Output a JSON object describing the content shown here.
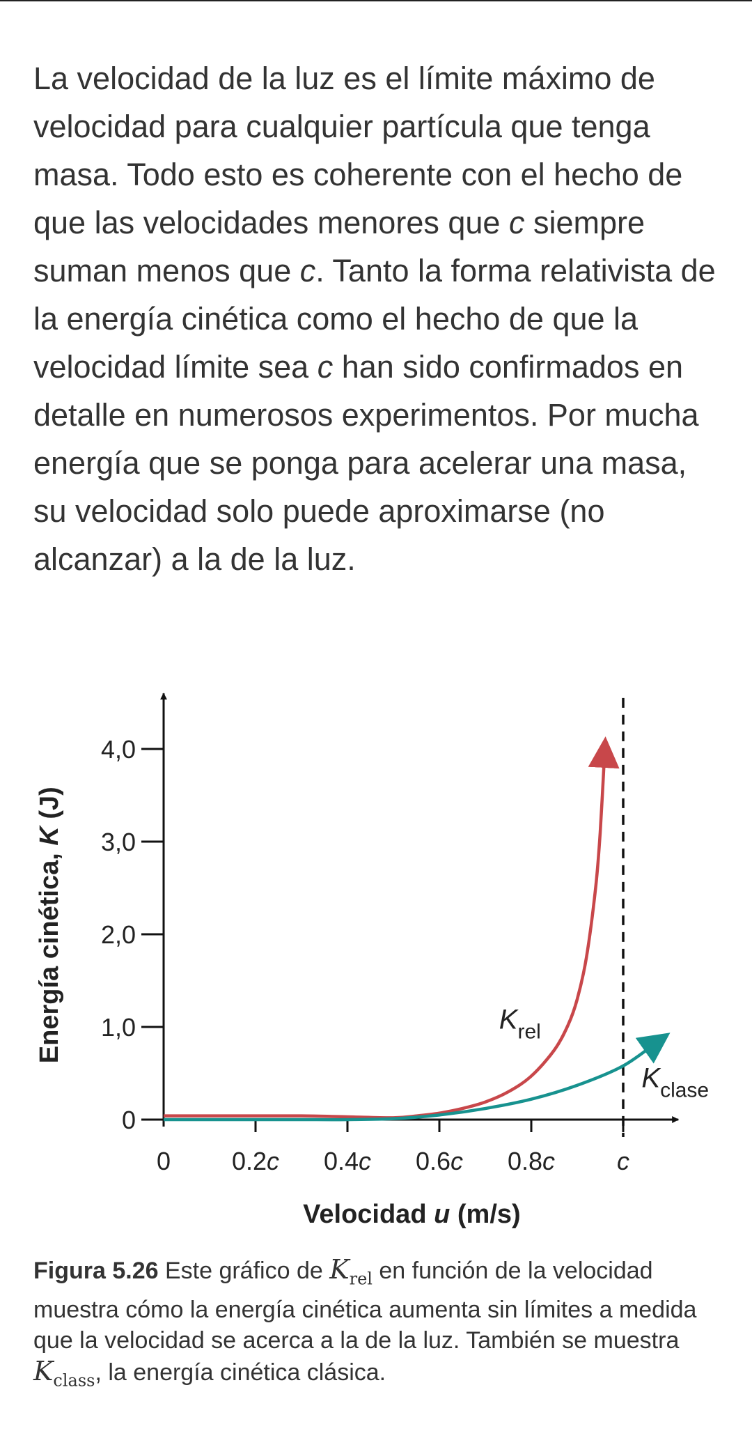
{
  "paragraph": {
    "part1": "La velocidad de la luz es el límite máximo de velocidad para cualquier partícula que tenga masa. Todo esto es coherente con el hecho de que las velocidades menores que ",
    "c1": "c",
    "part2": " siempre suman menos que ",
    "c2": "c",
    "part3": ". Tanto la forma relativista de la energía cinética como el hecho de que la velocidad límite sea ",
    "c3": "c",
    "part4": " han sido confirmados en detalle en numerosos experimentos. Por mucha energía que se ponga para acelerar una masa, su velocidad solo puede aproximarse (no alcanzar) a la de la luz."
  },
  "caption": {
    "figure_label": "Figura 5.26",
    "text1": " Este gráfico de ",
    "k_rel_symbol": "K",
    "k_rel_sub": "rel",
    "text2": " en función de la velocidad muestra cómo la energía cinética aumenta sin límites a medida que la velocidad se acerca a la de la luz. También se muestra ",
    "k_class_symbol": "K",
    "k_class_sub": "class",
    "text3": ", la energía cinética clásica."
  },
  "chart_data": {
    "type": "line",
    "xlabel_prefix": "Velocidad ",
    "xlabel_var": "u",
    "xlabel_suffix": " (m/s)",
    "ylabel_prefix": "Energía cinética, ",
    "ylabel_var": "K",
    "ylabel_suffix": " (J)",
    "x_ticks": [
      {
        "value": 0,
        "label": "0"
      },
      {
        "value": 0.2,
        "label": "0.2c"
      },
      {
        "value": 0.4,
        "label": "0.4c"
      },
      {
        "value": 0.6,
        "label": "0.6c"
      },
      {
        "value": 0.8,
        "label": "0.8c"
      },
      {
        "value": 1.0,
        "label": "c"
      }
    ],
    "y_ticks": [
      {
        "value": 0,
        "label": "0"
      },
      {
        "value": 1,
        "label": "1,0"
      },
      {
        "value": 2,
        "label": "2,0"
      },
      {
        "value": 3,
        "label": "3,0"
      },
      {
        "value": 4,
        "label": "4,0"
      }
    ],
    "xlim": [
      0,
      1.12
    ],
    "ylim": [
      0,
      4.6
    ],
    "grid": false,
    "asymptote_x": 1.0,
    "series": [
      {
        "name": "K",
        "name_sub": "rel",
        "color": "#c8474a",
        "x": [
          0,
          0.1,
          0.2,
          0.3,
          0.4,
          0.5,
          0.55,
          0.6,
          0.65,
          0.7,
          0.75,
          0.8,
          0.85,
          0.88,
          0.9,
          0.92,
          0.94,
          0.95,
          0.96
        ],
        "y": [
          0.04,
          0.04,
          0.04,
          0.04,
          0.03,
          0.02,
          0.04,
          0.07,
          0.12,
          0.19,
          0.3,
          0.47,
          0.75,
          1.02,
          1.3,
          1.75,
          2.5,
          3.1,
          4.0
        ]
      },
      {
        "name": "K",
        "name_sub": "clase",
        "color": "#17928f",
        "x": [
          0,
          0.1,
          0.2,
          0.3,
          0.4,
          0.5,
          0.6,
          0.7,
          0.8,
          0.9,
          1.0,
          1.08
        ],
        "y": [
          0,
          0,
          0,
          0,
          0,
          0.01,
          0.05,
          0.12,
          0.22,
          0.37,
          0.58,
          0.86
        ]
      }
    ]
  }
}
